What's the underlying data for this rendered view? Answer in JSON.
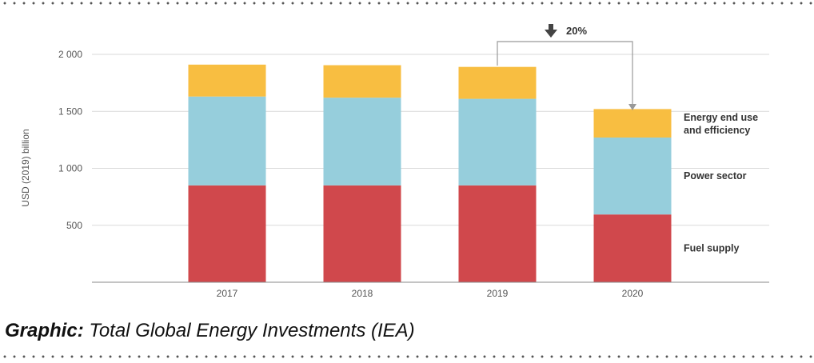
{
  "caption": {
    "label": "Graphic:",
    "text": "Total Global Energy Investments (IEA)"
  },
  "annotation": {
    "change_label": "20%",
    "icon": "down-arrow-icon"
  },
  "colors": {
    "fuel_supply": "#d0484c",
    "power_sector": "#96cedc",
    "energy_end_use": "#f8be41",
    "grid": "#d9d9d9",
    "axis_text": "#555555"
  },
  "chart_data": {
    "type": "bar",
    "stacked": true,
    "categories": [
      "2017",
      "2018",
      "2019",
      "2020"
    ],
    "series": [
      {
        "name": "Fuel supply",
        "values": [
          850,
          850,
          850,
          595
        ]
      },
      {
        "name": "Power sector",
        "values": [
          780,
          770,
          760,
          675
        ]
      },
      {
        "name": "Energy end use and efficiency",
        "values": [
          280,
          285,
          280,
          250
        ]
      }
    ],
    "ylabel": "USD (2019) billion",
    "ylim": [
      0,
      2000
    ],
    "yticks": [
      500,
      1000,
      1500,
      2000
    ],
    "ytick_labels": [
      "500",
      "1 000",
      "1 500",
      "2 000"
    ],
    "grid": true,
    "legend": "right, aligned with 2020 bar segments"
  }
}
